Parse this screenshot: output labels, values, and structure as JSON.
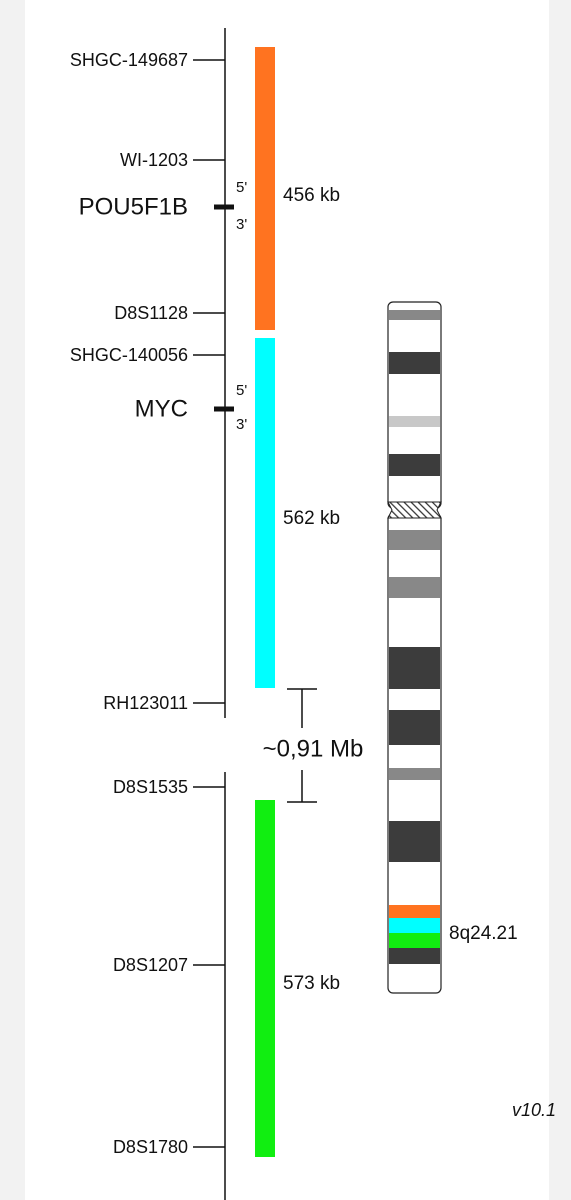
{
  "markers": [
    "SHGC-149687",
    "WI-1203",
    "D8S1128",
    "SHGC-140056",
    "RH123011",
    "D8S1535",
    "D8S1207",
    "D8S1780"
  ],
  "genes": [
    {
      "label": "POU5F1B",
      "five": "5'",
      "three": "3'"
    },
    {
      "label": "MYC",
      "five": "5'",
      "three": "3'"
    }
  ],
  "segments": [
    "456 kb",
    "562 kb",
    "573 kb"
  ],
  "gap": "~0,91 Mb",
  "band": "8q24.21",
  "version": "v10.1"
}
